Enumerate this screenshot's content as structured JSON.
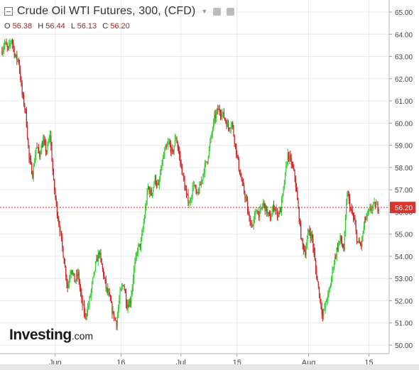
{
  "header": {
    "title": "Crude Oil WTI Futures, 300, (CFD)",
    "ohlc": [
      {
        "key": "O",
        "value": "56.38"
      },
      {
        "key": "H",
        "value": "56.44"
      },
      {
        "key": "L",
        "value": "56.13"
      },
      {
        "key": "C",
        "value": "56.20"
      }
    ]
  },
  "logo": {
    "brand": "Investing",
    "suffix": ".com"
  },
  "colors": {
    "up": "#33cc33",
    "down": "#cc2222",
    "last_line": "#cc2222",
    "badge_bg": "#d9342b",
    "grid": "#e8e8e8"
  },
  "chart_data": {
    "type": "candlestick",
    "ylim": [
      49.8,
      65.3
    ],
    "yticks": [
      "65.00",
      "64.00",
      "63.00",
      "62.00",
      "61.00",
      "60.00",
      "59.00",
      "58.00",
      "57.00",
      "56.00",
      "55.00",
      "54.00",
      "53.00",
      "52.00",
      "51.00",
      "50.00"
    ],
    "xticks": [
      {
        "label": "Jun",
        "t": 0.142
      },
      {
        "label": "16",
        "t": 0.311
      },
      {
        "label": "Jul",
        "t": 0.465
      },
      {
        "label": "15",
        "t": 0.609
      },
      {
        "label": "Aug",
        "t": 0.793
      },
      {
        "label": "15",
        "t": 0.948
      }
    ],
    "last_price": "56.20",
    "close_path": [
      63.2,
      63.6,
      63.3,
      63.8,
      63.0,
      62.8,
      61.3,
      60.5,
      58.4,
      57.7,
      58.9,
      58.6,
      59.2,
      58.7,
      59.5,
      57.3,
      56.0,
      55.0,
      53.8,
      52.6,
      53.5,
      52.9,
      53.2,
      52.0,
      51.3,
      51.8,
      52.7,
      53.6,
      54.2,
      53.4,
      52.6,
      52.1,
      51.4,
      51.0,
      52.3,
      52.8,
      51.8,
      52.0,
      53.4,
      54.3,
      54.6,
      55.8,
      57.1,
      56.8,
      57.5,
      57.1,
      58.2,
      58.8,
      59.1,
      58.6,
      59.4,
      58.5,
      57.6,
      56.7,
      56.4,
      57.3,
      56.7,
      57.2,
      57.9,
      58.4,
      59.3,
      60.2,
      60.6,
      60.5,
      60.2,
      59.8,
      60.0,
      59.0,
      58.0,
      57.2,
      56.6,
      55.6,
      55.4,
      56.1,
      55.9,
      56.4,
      56.0,
      55.7,
      56.3,
      55.9,
      56.1,
      57.3,
      58.6,
      58.2,
      57.6,
      56.1,
      54.6,
      54.2,
      55.2,
      54.8,
      53.4,
      52.3,
      51.3,
      52.0,
      52.5,
      53.6,
      54.3,
      54.8,
      54.3,
      56.9,
      56.1,
      55.6,
      54.6,
      54.5,
      55.6,
      55.9,
      56.2,
      56.3,
      56.2
    ]
  }
}
